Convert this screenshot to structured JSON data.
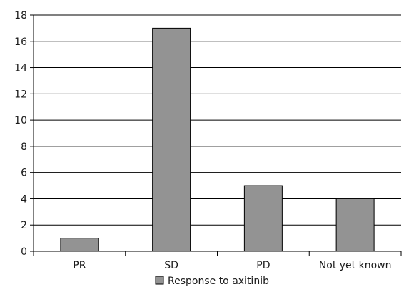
{
  "chart_data": {
    "type": "bar",
    "categories": [
      "PR",
      "SD",
      "PD",
      "Not yet known"
    ],
    "series": [
      {
        "name": "Response to axitinib",
        "values": [
          1,
          17,
          5,
          4
        ]
      }
    ],
    "title": "",
    "xlabel": "",
    "ylabel": "",
    "ylim": [
      0,
      18
    ],
    "yticks": [
      "0",
      "2",
      "4",
      "6",
      "8",
      "10",
      "12",
      "14",
      "16",
      "18"
    ],
    "grid": true,
    "legend_position": "bottom",
    "colors": {
      "bar_fill": "#939393",
      "bar_stroke": "#000000",
      "gridline": "#000000",
      "axis": "#000000"
    }
  }
}
